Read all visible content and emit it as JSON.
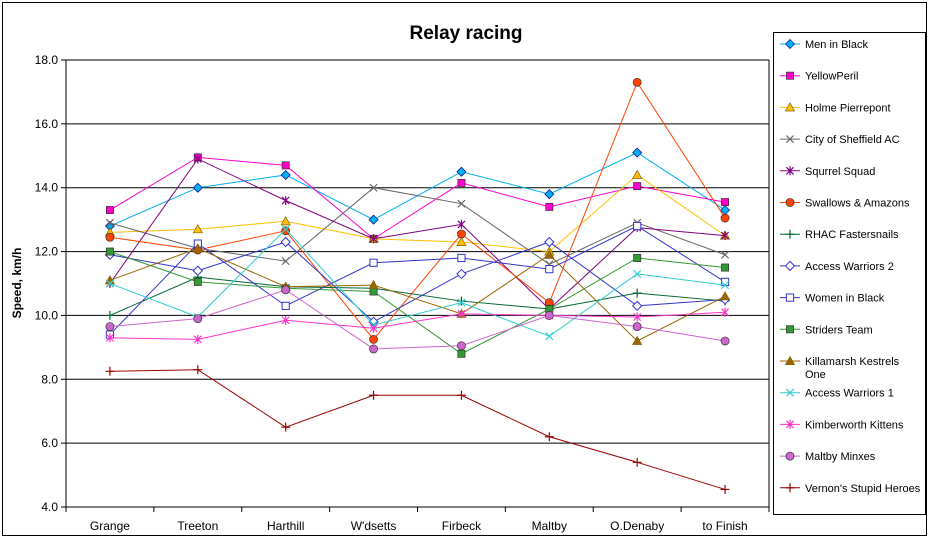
{
  "chart_data": {
    "type": "line",
    "title": "Relay racing",
    "xlabel": "",
    "ylabel": "Speed, km/h",
    "ylim": [
      4.0,
      18.0
    ],
    "yticks": [
      "4.0",
      "6.0",
      "8.0",
      "10.0",
      "12.0",
      "14.0",
      "16.0",
      "18.0"
    ],
    "grid": "horizontal",
    "legend_position": "right",
    "categories": [
      "Grange",
      "Treeton",
      "Harthill",
      "W'dsetts",
      "Firbeck",
      "Maltby",
      "O.Denaby",
      "to Finish"
    ],
    "series": [
      {
        "name": "Men in Black",
        "color": "#00B0F0",
        "marker": "diamond",
        "values": [
          12.8,
          14.0,
          14.4,
          13.0,
          14.5,
          13.8,
          15.1,
          13.3
        ]
      },
      {
        "name": "YellowPeril",
        "color": "#FF00CC",
        "marker": "square",
        "values": [
          13.3,
          14.95,
          14.7,
          12.4,
          14.15,
          13.4,
          14.05,
          13.55
        ]
      },
      {
        "name": "Holme Pierrepont",
        "color": "#FFC000",
        "marker": "triangle",
        "values": [
          12.6,
          12.7,
          12.95,
          12.4,
          12.3,
          12.0,
          14.4,
          12.5
        ]
      },
      {
        "name": "City of Sheffield AC",
        "color": "#666666",
        "marker": "x",
        "values": [
          12.9,
          12.1,
          11.7,
          14.0,
          13.5,
          11.6,
          12.9,
          11.9
        ]
      },
      {
        "name": "Squrrel Squad",
        "color": "#800080",
        "marker": "star",
        "values": [
          11.0,
          14.9,
          13.6,
          12.4,
          12.85,
          10.2,
          12.75,
          12.5
        ]
      },
      {
        "name": "Swallows & Amazons",
        "color": "#FF4400",
        "marker": "circle",
        "values": [
          12.45,
          12.05,
          12.65,
          9.25,
          12.55,
          10.4,
          17.3,
          13.05
        ]
      },
      {
        "name": "RHAC Fastersnails",
        "color": "#006633",
        "marker": "plus",
        "values": [
          10.0,
          11.2,
          10.9,
          10.85,
          10.45,
          10.2,
          10.7,
          10.45
        ]
      },
      {
        "name": "Access Warriors 2",
        "color": "#3333CC",
        "marker": "diamond-open",
        "values": [
          11.9,
          11.4,
          12.3,
          9.8,
          11.3,
          12.3,
          10.3,
          10.5
        ]
      },
      {
        "name": "Women in Black",
        "color": "#3333CC",
        "marker": "square-open",
        "values": [
          9.4,
          12.25,
          10.3,
          11.65,
          11.8,
          11.45,
          12.8,
          11.05
        ]
      },
      {
        "name": "Striders Team",
        "color": "#339933",
        "marker": "square",
        "values": [
          12.0,
          11.05,
          10.85,
          10.75,
          8.8,
          10.2,
          11.8,
          11.5
        ]
      },
      {
        "name": "Killamarsh Kestrels One",
        "color": "#996600",
        "marker": "triangle",
        "values": [
          11.1,
          12.1,
          10.9,
          10.95,
          10.05,
          11.9,
          9.2,
          10.6
        ]
      },
      {
        "name": "Access Warriors 1",
        "color": "#33CCCC",
        "marker": "x",
        "values": [
          11.0,
          9.95,
          12.7,
          9.7,
          10.4,
          9.35,
          11.3,
          10.95
        ]
      },
      {
        "name": "Kimberworth Kittens",
        "color": "#FF33CC",
        "marker": "star",
        "values": [
          9.3,
          9.25,
          9.85,
          9.6,
          10.05,
          10.0,
          9.95,
          10.1
        ]
      },
      {
        "name": "Maltby Minxes",
        "color": "#CC66CC",
        "marker": "circle",
        "values": [
          9.65,
          9.9,
          10.8,
          8.95,
          9.05,
          10.0,
          9.65,
          9.2
        ]
      },
      {
        "name": "Vernon's Stupid Heroes",
        "color": "#990000",
        "marker": "plus",
        "values": [
          8.25,
          8.3,
          6.5,
          7.5,
          7.5,
          6.2,
          5.4,
          4.55
        ]
      }
    ]
  }
}
